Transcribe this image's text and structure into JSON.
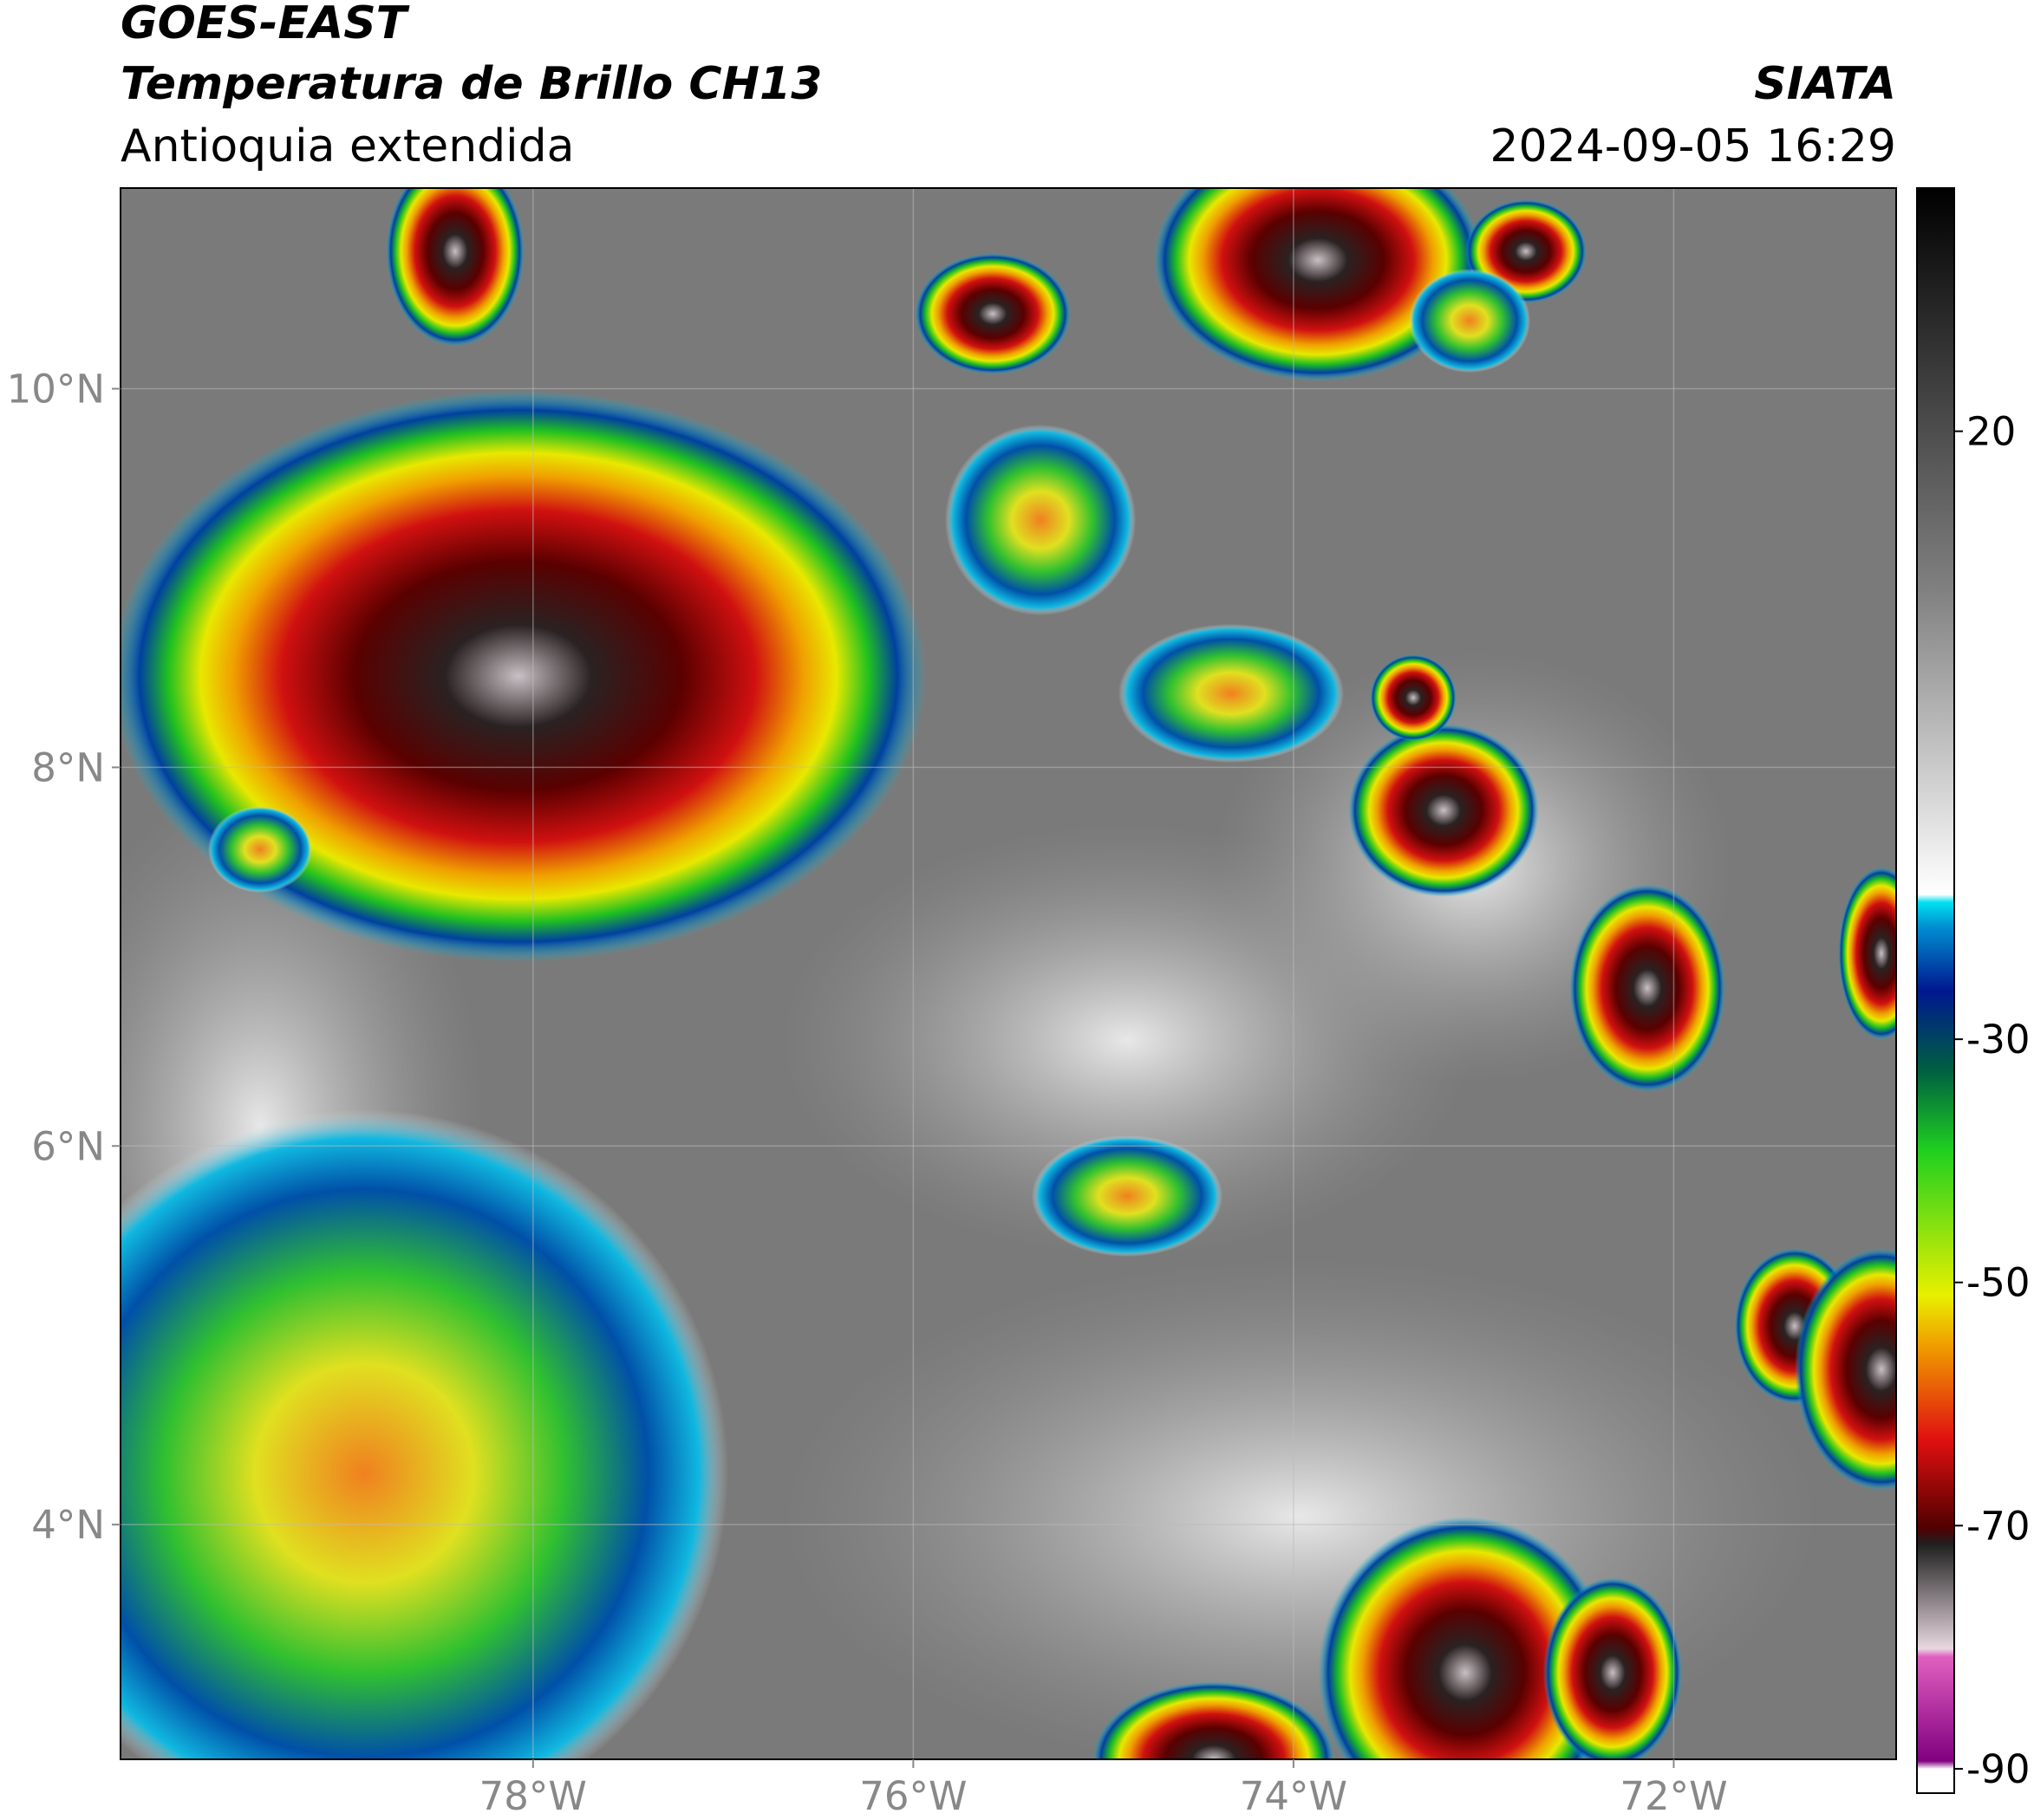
{
  "header": {
    "title": "GOES-EAST",
    "subtitle": "Temperatura de Brillo CH13",
    "region": "Antioquia extendida",
    "source": "SIATA",
    "datetime": "2024-09-05 16:29"
  },
  "map": {
    "xlim": [
      -80.17,
      -70.83
    ],
    "ylim": [
      2.76,
      11.06
    ],
    "xticks": [
      {
        "value": -78,
        "label": "78°W"
      },
      {
        "value": -76,
        "label": "76°W"
      },
      {
        "value": -74,
        "label": "74°W"
      },
      {
        "value": -72,
        "label": "72°W"
      }
    ],
    "yticks": [
      {
        "value": 4,
        "label": "4°N"
      },
      {
        "value": 6,
        "label": "6°N"
      },
      {
        "value": 8,
        "label": "8°N"
      },
      {
        "value": 10,
        "label": "10°N"
      }
    ],
    "grid": true
  },
  "colorbar": {
    "lim": [
      -92,
      40
    ],
    "ticks": [
      20,
      -30,
      -50,
      -70,
      -90
    ]
  }
}
